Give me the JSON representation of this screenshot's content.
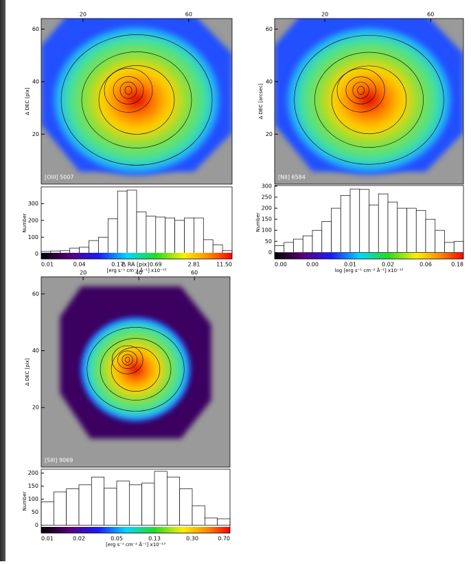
{
  "chart_data": [
    {
      "type": "bar",
      "map_label": "[OIII] 5007",
      "ylabel": "Δ DEC [pix]",
      "xlim": [
        4.2,
        76.4
      ],
      "xticks": [
        20,
        60
      ],
      "map_ylim": [
        1,
        64
      ],
      "map_yticks": [
        20,
        40,
        60
      ],
      "hist_ylabel": "Number",
      "ylim": [
        -30,
        400
      ],
      "yticks": [
        0,
        100,
        200,
        300
      ],
      "values": [
        15,
        18,
        20,
        35,
        40,
        80,
        100,
        210,
        375,
        380,
        250,
        225,
        220,
        215,
        200,
        215,
        215,
        85,
        55,
        20
      ],
      "colorbar_ticks": [
        "0.01",
        "0.04",
        "0.17",
        "0.69",
        "2.81",
        "11.50"
      ],
      "colorbar_label": "[erg s⁻¹ cm⁻² Å⁻¹] x10⁻¹³"
    },
    {
      "type": "bar",
      "map_label": "[NII] 6584",
      "ylabel": "Δ DEC [arcsec]",
      "xlim": [
        1,
        72.4
      ],
      "xticks": [
        20,
        60
      ],
      "map_ylim": [
        1,
        64
      ],
      "map_yticks": [
        20,
        40,
        60
      ],
      "hist_ylabel": "Number",
      "ylim": [
        -30,
        303
      ],
      "yticks": [
        0,
        50,
        100,
        150,
        200,
        250,
        300
      ],
      "values": [
        30,
        45,
        60,
        75,
        100,
        140,
        200,
        258,
        287,
        285,
        215,
        265,
        228,
        200,
        200,
        190,
        150,
        100,
        45,
        50
      ],
      "colorbar_ticks": [
        "0.00",
        "0.00",
        "0.01",
        "0.02",
        "0.06",
        "0.18"
      ],
      "colorbar_label": "log [erg s⁻¹ cm⁻² Å⁻¹] x10⁻¹³"
    },
    {
      "type": "bar",
      "map_label": "[SIII] 9069",
      "ylabel": "Δ DEC [pix]",
      "xlabel": "Δ RA [pix]",
      "xlim": [
        4.9,
        72.8
      ],
      "xticks": [
        20,
        40,
        60
      ],
      "map_ylim": [
        -1,
        66
      ],
      "map_yticks": [
        20,
        40,
        60
      ],
      "hist_ylabel": "Number",
      "ylim": [
        -30,
        215
      ],
      "yticks": [
        0,
        50,
        100,
        150,
        200
      ],
      "values": [
        90,
        128,
        140,
        155,
        185,
        142,
        170,
        155,
        162,
        207,
        185,
        140,
        75,
        28,
        25
      ],
      "colorbar_ticks": [
        "0.01",
        "0.02",
        "0.05",
        "0.13",
        "0.30",
        "0.70"
      ],
      "colorbar_label": "[erg s⁻¹ cm⁻² Å⁻¹] x10⁻¹³"
    }
  ]
}
